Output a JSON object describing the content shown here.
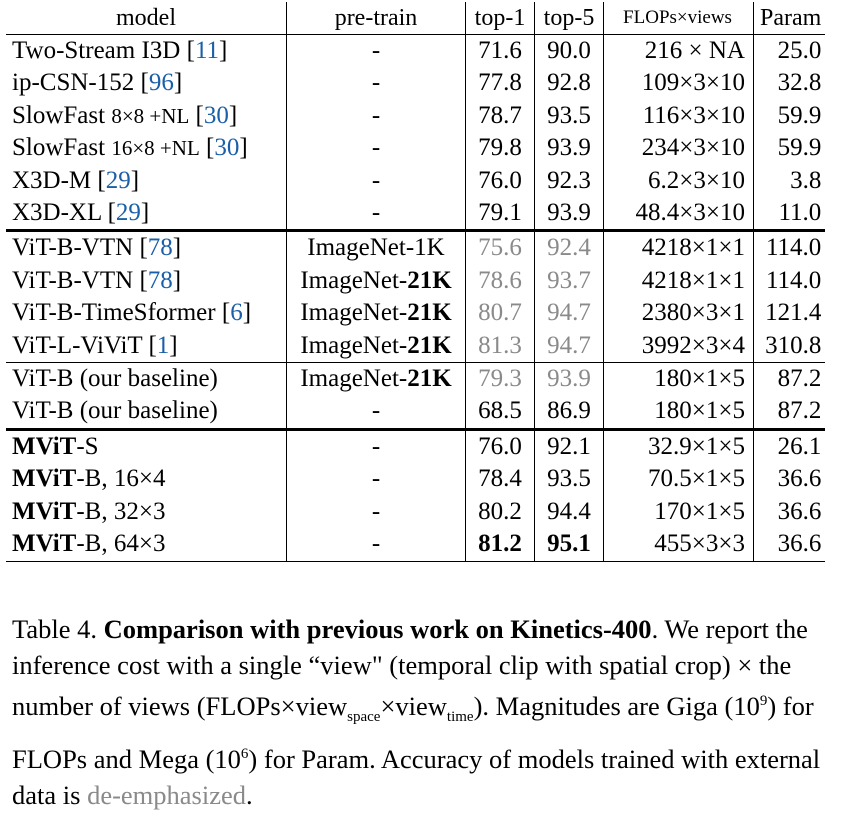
{
  "headers": [
    "model",
    "pre-train",
    "top-1",
    "top-5",
    "FLOPs×views",
    "Param"
  ],
  "rows": [
    {
      "name": "Two-Stream I3D",
      "cite": "11",
      "pre": "-",
      "top1": "71.6",
      "top5": "90.0",
      "flops": "216 × NA",
      "param": "25.0"
    },
    {
      "name": "ip-CSN-152",
      "cite": "96",
      "pre": "-",
      "top1": "77.8",
      "top5": "92.8",
      "flops": "109×3×10",
      "param": "32.8"
    },
    {
      "name": "SlowFast",
      "variant": "8×8 +NL",
      "cite": "30",
      "pre": "-",
      "top1": "78.7",
      "top5": "93.5",
      "flops": "116×3×10",
      "param": "59.9"
    },
    {
      "name": "SlowFast",
      "variant": "16×8 +NL",
      "cite": "30",
      "pre": "-",
      "top1": "79.8",
      "top5": "93.9",
      "flops": "234×3×10",
      "param": "59.9"
    },
    {
      "name": "X3D-M",
      "cite": "29",
      "pre": "-",
      "top1": "76.0",
      "top5": "92.3",
      "flops": "6.2×3×10",
      "param": "3.8"
    },
    {
      "name": "X3D-XL",
      "cite": "29",
      "pre": "-",
      "top1": "79.1",
      "top5": "93.9",
      "flops": "48.4×3×10",
      "param": "11.0"
    },
    {
      "name": "ViT-B-VTN",
      "cite": "78",
      "pre": "ImageNet-1K",
      "top1": "75.6",
      "top5": "92.4",
      "flops": "4218×1×1",
      "param": "114.0"
    },
    {
      "name": "ViT-B-VTN",
      "cite": "78",
      "pre_a": "ImageNet-",
      "pre_b": "21K",
      "top1": "78.6",
      "top5": "93.7",
      "flops": "4218×1×1",
      "param": "114.0"
    },
    {
      "name": "ViT-B-TimeSformer",
      "cite": "6",
      "pre_a": "ImageNet-",
      "pre_b": "21K",
      "top1": "80.7",
      "top5": "94.7",
      "flops": "2380×3×1",
      "param": "121.4"
    },
    {
      "name": "ViT-L-ViViT",
      "cite": "1",
      "pre_a": "ImageNet-",
      "pre_b": "21K",
      "top1": "81.3",
      "top5": "94.7",
      "flops": "3992×3×4",
      "param": "310.8"
    },
    {
      "name": "ViT-B (our baseline)",
      "pre_a": "ImageNet-",
      "pre_b": "21K",
      "top1": "79.3",
      "top5": "93.9",
      "flops": "180×1×5",
      "param": "87.2"
    },
    {
      "name": "ViT-B (our baseline)",
      "pre": "-",
      "top1": "68.5",
      "top5": "86.9",
      "flops": "180×1×5",
      "param": "87.2"
    },
    {
      "name_bold": "MViT",
      "name_rest": "-S",
      "pre": "-",
      "top1": "76.0",
      "top5": "92.1",
      "flops": "32.9×1×5",
      "param": "26.1"
    },
    {
      "name_bold": "MViT",
      "name_rest": "-B, 16×4",
      "pre": "-",
      "top1": "78.4",
      "top5": "93.5",
      "flops": "70.5×1×5",
      "param": "36.6"
    },
    {
      "name_bold": "MViT",
      "name_rest": "-B, 32×3",
      "pre": "-",
      "top1": "80.2",
      "top5": "94.4",
      "flops": "170×1×5",
      "param": "36.6"
    },
    {
      "name_bold": "MViT",
      "name_rest": "-B, 64×3",
      "pre": "-",
      "top1": "81.2",
      "top5": "95.1",
      "flops": "455×3×3",
      "param": "36.6"
    }
  ],
  "caption": {
    "label": "Table 4.",
    "title": "Comparison with previous work on Kinetics-400",
    "t1": ". We report the inference cost with a single “view\" (temporal clip with spatial crop) × the number of views (FLOPs×view",
    "sub1": "space",
    "t2": "×view",
    "sub2": "time",
    "t3": "). Magnitudes are Giga (10",
    "sup1": "9",
    "t4": ") for FLOPs and Mega (10",
    "sup2": "6",
    "t5": ") for Param. Accuracy of models trained with external data is ",
    "deemph": "de-emphasized",
    "t6": "."
  }
}
